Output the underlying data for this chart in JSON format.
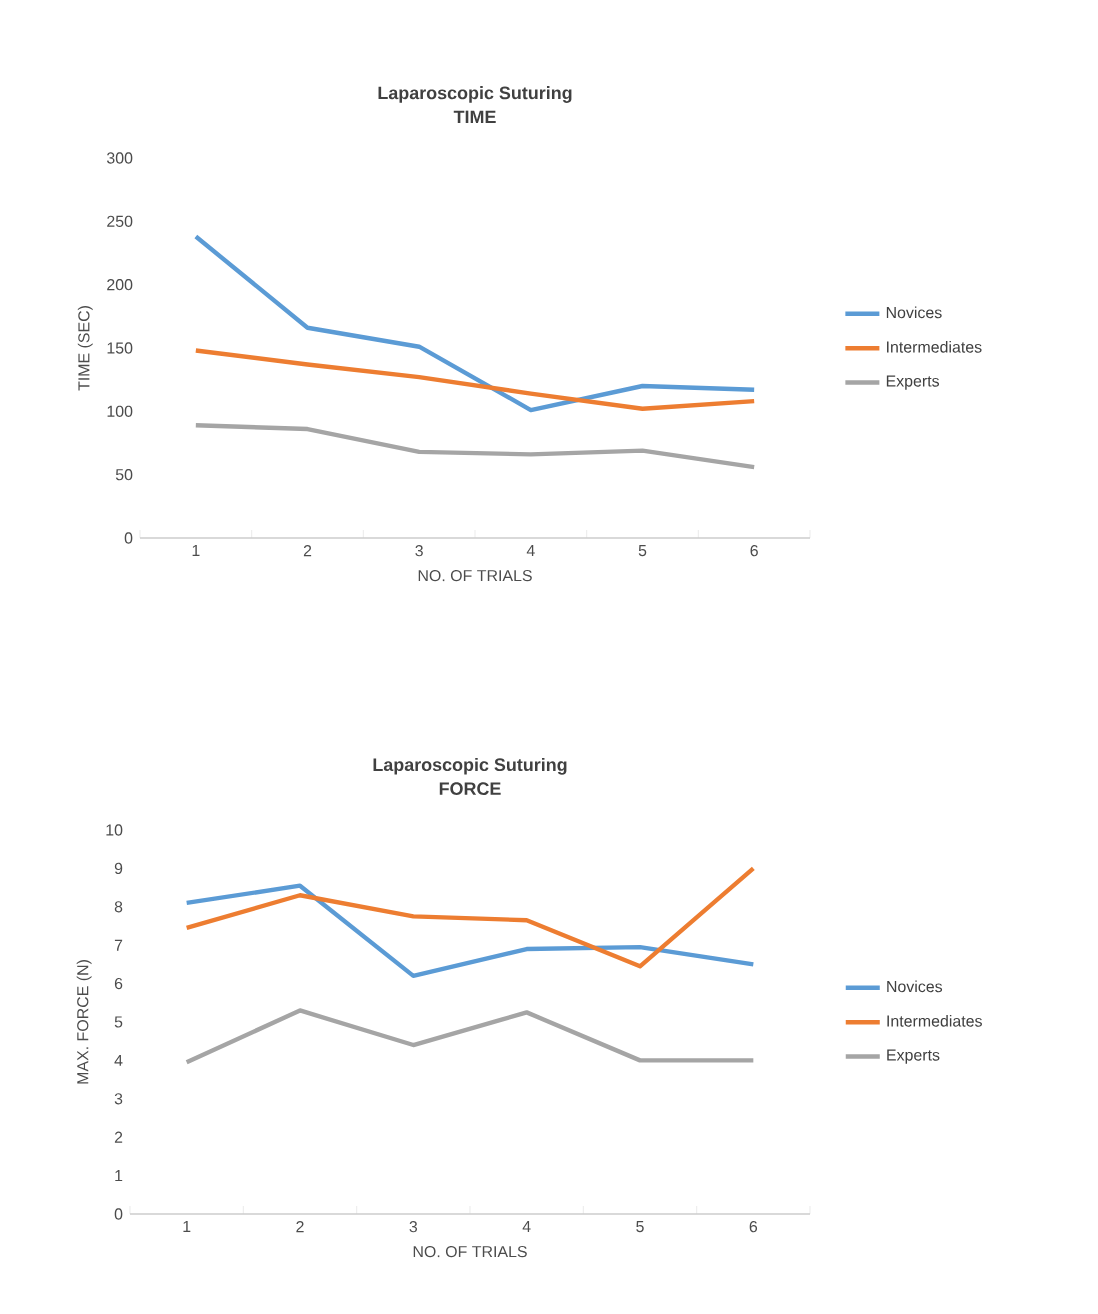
{
  "chart_data": [
    {
      "type": "line",
      "title": "Laparoscopic Suturing",
      "subtitle": "TIME",
      "xlabel": "NO. OF TRIALS",
      "ylabel": "TIME (SEC)",
      "categories": [
        "1",
        "2",
        "3",
        "4",
        "5",
        "6"
      ],
      "ylim": [
        0,
        300
      ],
      "yticks": [
        0,
        50,
        100,
        150,
        200,
        250,
        300
      ],
      "legend": "right",
      "series": [
        {
          "name": "Novices",
          "color": "#5b9bd5",
          "values": [
            238,
            166,
            151,
            101,
            120,
            117
          ]
        },
        {
          "name": "Intermediates",
          "color": "#ed7d31",
          "values": [
            148,
            137,
            127,
            114,
            102,
            108
          ]
        },
        {
          "name": "Experts",
          "color": "#a5a5a5",
          "values": [
            89,
            86,
            68,
            66,
            69,
            56
          ]
        }
      ]
    },
    {
      "type": "line",
      "title": "Laparoscopic Suturing",
      "subtitle": "FORCE",
      "xlabel": "NO. OF TRIALS",
      "ylabel": "MAX. FORCE (N)",
      "categories": [
        "1",
        "2",
        "3",
        "4",
        "5",
        "6"
      ],
      "ylim": [
        0,
        10
      ],
      "yticks": [
        0,
        1,
        2,
        3,
        4,
        5,
        6,
        7,
        8,
        9,
        10
      ],
      "legend": "right",
      "series": [
        {
          "name": "Novices",
          "color": "#5b9bd5",
          "values": [
            8.1,
            8.55,
            6.2,
            6.9,
            6.95,
            6.5
          ]
        },
        {
          "name": "Intermediates",
          "color": "#ed7d31",
          "values": [
            7.45,
            8.3,
            7.75,
            7.65,
            6.45,
            9.0
          ]
        },
        {
          "name": "Experts",
          "color": "#a5a5a5",
          "values": [
            3.95,
            5.3,
            4.4,
            5.25,
            4.0,
            4.0
          ]
        }
      ]
    }
  ]
}
